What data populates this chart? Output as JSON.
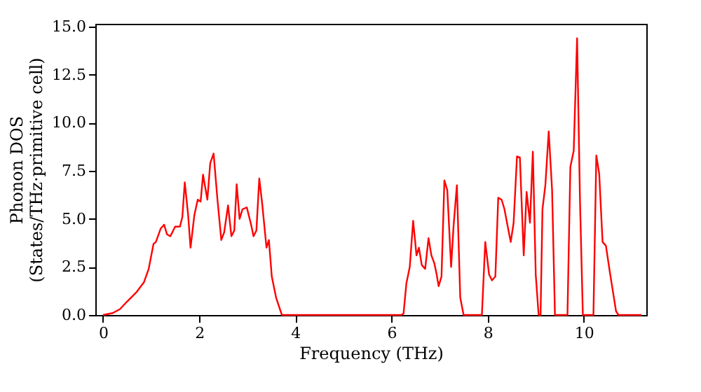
{
  "chart_data": {
    "type": "line",
    "xlabel": "Frequency (THz)",
    "ylabel": "Phonon DOS\n(States/THz·primitive cell)",
    "x": [
      0,
      0.2,
      0.35,
      0.5,
      0.7,
      0.85,
      0.95,
      1.05,
      1.1,
      1.2,
      1.27,
      1.33,
      1.4,
      1.5,
      1.6,
      1.65,
      1.7,
      1.77,
      1.82,
      1.9,
      1.97,
      2.03,
      2.08,
      2.17,
      2.23,
      2.3,
      2.38,
      2.46,
      2.52,
      2.6,
      2.67,
      2.73,
      2.78,
      2.84,
      2.9,
      2.99,
      3.08,
      3.13,
      3.19,
      3.25,
      3.31,
      3.4,
      3.45,
      3.51,
      3.6,
      3.72,
      6.2,
      6.25,
      6.31,
      6.38,
      6.45,
      6.52,
      6.57,
      6.63,
      6.7,
      6.77,
      6.83,
      6.89,
      6.94,
      6.98,
      7.04,
      7.1,
      7.16,
      7.24,
      7.29,
      7.36,
      7.43,
      7.5,
      7.88,
      7.95,
      8.03,
      8.09,
      8.16,
      8.22,
      8.29,
      8.35,
      8.41,
      8.48,
      8.54,
      8.61,
      8.67,
      8.75,
      8.81,
      8.88,
      8.94,
      9.0,
      9.06,
      9.1,
      9.14,
      9.2,
      9.27,
      9.34,
      9.4,
      9.66,
      9.72,
      9.79,
      9.86,
      9.92,
      9.98,
      10.2,
      10.26,
      10.32,
      10.39,
      10.46,
      10.54,
      10.61,
      10.67,
      10.72,
      11.2
    ],
    "series": [
      {
        "color": "#ff0000",
        "values": [
          0,
          0.1,
          0.3,
          0.7,
          1.2,
          1.7,
          2.4,
          3.7,
          3.8,
          4.5,
          4.7,
          4.2,
          4.1,
          4.6,
          4.6,
          5.1,
          6.9,
          5.2,
          3.5,
          5.2,
          6.0,
          5.9,
          7.3,
          6.0,
          7.9,
          8.4,
          6.0,
          3.9,
          4.3,
          5.7,
          4.1,
          4.4,
          6.8,
          5.0,
          5.5,
          5.6,
          4.7,
          4.1,
          4.4,
          7.1,
          5.8,
          3.5,
          3.9,
          2.0,
          0.9,
          0,
          0,
          0.07,
          1.65,
          2.5,
          4.9,
          3.1,
          3.5,
          2.6,
          2.4,
          4.0,
          3.1,
          2.7,
          2.1,
          1.5,
          2.0,
          7.0,
          6.5,
          2.5,
          4.6,
          6.75,
          0.9,
          0,
          0,
          3.8,
          2.1,
          1.8,
          2.0,
          6.1,
          6.0,
          5.5,
          4.7,
          3.8,
          4.8,
          8.25,
          8.2,
          3.1,
          6.4,
          4.8,
          8.5,
          2.1,
          0,
          0,
          5.5,
          6.75,
          9.55,
          6.5,
          0,
          0,
          7.7,
          8.55,
          14.4,
          6.0,
          0,
          0,
          8.3,
          7.35,
          3.8,
          3.6,
          2.25,
          1.15,
          0.2,
          0,
          0
        ]
      }
    ],
    "xlim": [
      -0.16,
      11.3
    ],
    "xticks": [
      0,
      2,
      4,
      6,
      8,
      10
    ],
    "ylim": [
      0,
      15.15
    ],
    "yticks": [
      {
        "value": 0,
        "label": "0.0"
      },
      {
        "value": 2.5,
        "label": "2.5"
      },
      {
        "value": 5,
        "label": "5.0"
      },
      {
        "value": 7.5,
        "label": "7.5"
      },
      {
        "value": 10,
        "label": "10.0"
      },
      {
        "value": 12.5,
        "label": "12.5"
      },
      {
        "value": 15,
        "label": "15.0"
      }
    ],
    "grid": false,
    "legend": false
  }
}
